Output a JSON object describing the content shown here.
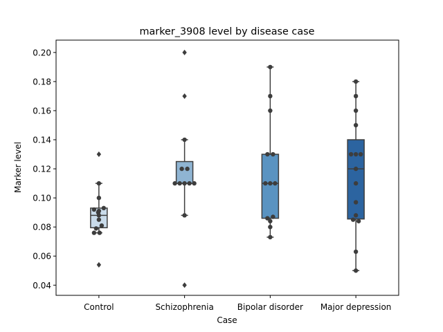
{
  "chart_data": {
    "type": "box",
    "title": "marker_3908 level by disease case",
    "xlabel": "Case",
    "ylabel": "Marker level",
    "ylim": [
      0.033,
      0.2085
    ],
    "yticks": [
      "0.04",
      "0.06",
      "0.08",
      "0.10",
      "0.12",
      "0.14",
      "0.16",
      "0.18",
      "0.20"
    ],
    "grid": false,
    "categories": [
      "Control",
      "Schizophrenia",
      "Bipolar disorder",
      "Major depression"
    ],
    "colors": [
      "#c9dbea",
      "#8fb4d2",
      "#5a93c1",
      "#2c64a0"
    ],
    "boxes": [
      {
        "q1": 0.0795,
        "median": 0.088,
        "q3": 0.093,
        "whisker_low": 0.076,
        "whisker_high": 0.11,
        "outliers": [
          0.13,
          0.054
        ]
      },
      {
        "q1": 0.11,
        "median": 0.11,
        "q3": 0.125,
        "whisker_low": 0.088,
        "whisker_high": 0.14,
        "outliers": [
          0.2,
          0.17,
          0.04
        ]
      },
      {
        "q1": 0.086,
        "median": 0.11,
        "q3": 0.13,
        "whisker_low": 0.073,
        "whisker_high": 0.19,
        "outliers": []
      },
      {
        "q1": 0.0855,
        "median": 0.12,
        "q3": 0.14,
        "whisker_low": 0.05,
        "whisker_high": 0.18,
        "outliers": []
      }
    ],
    "points": [
      [
        {
          "y": 0.11,
          "dx": 0
        },
        {
          "y": 0.1,
          "dx": 0
        },
        {
          "y": 0.093,
          "dx": 7
        },
        {
          "y": 0.092,
          "dx": -7
        },
        {
          "y": 0.091,
          "dx": 0
        },
        {
          "y": 0.09,
          "dx": -1
        },
        {
          "y": 0.088,
          "dx": 0
        },
        {
          "y": 0.085,
          "dx": 0
        },
        {
          "y": 0.081,
          "dx": 4
        },
        {
          "y": 0.079,
          "dx": -4
        },
        {
          "y": 0.076,
          "dx": -7
        },
        {
          "y": 0.076,
          "dx": 1
        }
      ],
      [
        {
          "y": 0.14,
          "dx": 0
        },
        {
          "y": 0.12,
          "dx": -4
        },
        {
          "y": 0.12,
          "dx": 4
        },
        {
          "y": 0.11,
          "dx": -14
        },
        {
          "y": 0.11,
          "dx": -7
        },
        {
          "y": 0.11,
          "dx": 0
        },
        {
          "y": 0.11,
          "dx": 7
        },
        {
          "y": 0.11,
          "dx": 14
        },
        {
          "y": 0.088,
          "dx": 0
        }
      ],
      [
        {
          "y": 0.19,
          "dx": 0
        },
        {
          "y": 0.17,
          "dx": 0
        },
        {
          "y": 0.16,
          "dx": 0
        },
        {
          "y": 0.13,
          "dx": -4
        },
        {
          "y": 0.13,
          "dx": 4
        },
        {
          "y": 0.11,
          "dx": -7
        },
        {
          "y": 0.11,
          "dx": 0
        },
        {
          "y": 0.11,
          "dx": 7
        },
        {
          "y": 0.087,
          "dx": 4
        },
        {
          "y": 0.086,
          "dx": -4
        },
        {
          "y": 0.084,
          "dx": 0
        },
        {
          "y": 0.08,
          "dx": 0
        },
        {
          "y": 0.073,
          "dx": 0
        }
      ],
      [
        {
          "y": 0.18,
          "dx": 0
        },
        {
          "y": 0.17,
          "dx": 0
        },
        {
          "y": 0.16,
          "dx": 0
        },
        {
          "y": 0.15,
          "dx": 0
        },
        {
          "y": 0.13,
          "dx": -7
        },
        {
          "y": 0.13,
          "dx": 0
        },
        {
          "y": 0.13,
          "dx": 7
        },
        {
          "y": 0.12,
          "dx": 0
        },
        {
          "y": 0.11,
          "dx": 0
        },
        {
          "y": 0.097,
          "dx": 0
        },
        {
          "y": 0.088,
          "dx": 0
        },
        {
          "y": 0.085,
          "dx": -4
        },
        {
          "y": 0.084,
          "dx": 4
        },
        {
          "y": 0.063,
          "dx": 0
        },
        {
          "y": 0.05,
          "dx": 0
        }
      ]
    ]
  }
}
